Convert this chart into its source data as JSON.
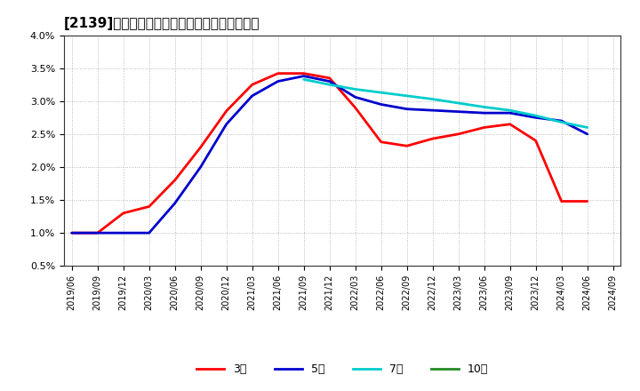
{
  "title": "[2139]　当期純利益マージンの標準偏差の推移",
  "figure_bg": "#ffffff",
  "plot_bg": "#ffffff",
  "ylim": [
    0.005,
    0.04
  ],
  "yticks": [
    0.005,
    0.01,
    0.015,
    0.02,
    0.025,
    0.03,
    0.035,
    0.04
  ],
  "ytick_labels": [
    "0.5%",
    "1.0%",
    "1.5%",
    "2.0%",
    "2.5%",
    "3.0%",
    "3.5%",
    "4.0%"
  ],
  "xtick_labels": [
    "2019/06",
    "2019/09",
    "2019/12",
    "2020/03",
    "2020/06",
    "2020/09",
    "2020/12",
    "2021/03",
    "2021/06",
    "2021/09",
    "2021/12",
    "2022/03",
    "2022/06",
    "2022/09",
    "2022/12",
    "2023/03",
    "2023/06",
    "2023/09",
    "2023/12",
    "2024/03",
    "2024/06",
    "2024/09"
  ],
  "lines": [
    {
      "label": "3年",
      "color": "#ff0000",
      "x": [
        0,
        1,
        2,
        3,
        4,
        5,
        6,
        7,
        8,
        9,
        10,
        11,
        12,
        13,
        14,
        15,
        16,
        17,
        18,
        19,
        20
      ],
      "y": [
        0.01,
        0.01,
        0.013,
        0.014,
        0.018,
        0.023,
        0.0285,
        0.0325,
        0.0342,
        0.0342,
        0.0335,
        0.029,
        0.0238,
        0.0232,
        0.0243,
        0.025,
        0.026,
        0.0265,
        0.024,
        0.0148,
        0.0148
      ]
    },
    {
      "label": "5年",
      "color": "#0000cd",
      "x": [
        0,
        1,
        2,
        3,
        4,
        5,
        6,
        7,
        8,
        9,
        10,
        11,
        12,
        13,
        14,
        15,
        16,
        17,
        18,
        19,
        20
      ],
      "y": [
        0.01,
        0.01,
        0.01,
        0.01,
        0.0145,
        0.02,
        0.0265,
        0.0308,
        0.033,
        0.0338,
        0.033,
        0.0306,
        0.0295,
        0.0288,
        0.0286,
        0.0284,
        0.0282,
        0.0282,
        0.0275,
        0.027,
        0.025
      ]
    },
    {
      "label": "7年",
      "color": "#00cccc",
      "x": [
        9,
        10,
        11,
        12,
        13,
        14,
        15,
        16,
        17,
        18,
        19,
        20
      ],
      "y": [
        0.0333,
        0.0325,
        0.0318,
        0.0313,
        0.0308,
        0.0303,
        0.0297,
        0.0291,
        0.0286,
        0.0278,
        0.0268,
        0.026
      ]
    },
    {
      "label": "10年",
      "color": "#228b22",
      "x": [],
      "y": []
    }
  ],
  "linewidth": 2.0,
  "grid_color": "#aaaaaa",
  "spine_color": "#333333",
  "title_fontsize": 11,
  "tick_fontsize": 8,
  "legend_fontsize": 9
}
